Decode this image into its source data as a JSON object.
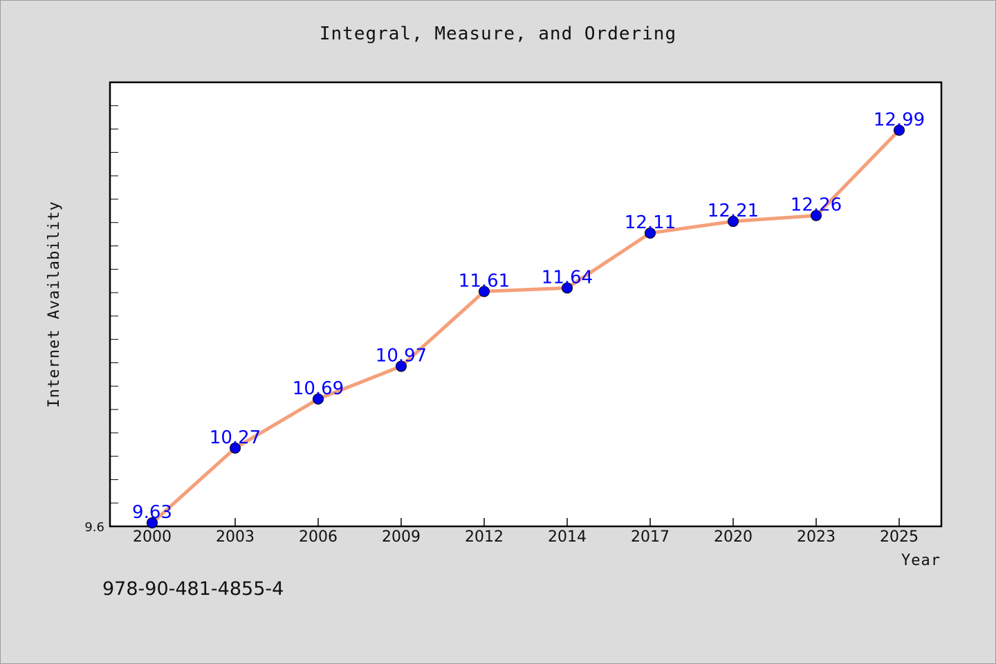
{
  "page": {
    "isbn": "978-90-481-4855-4"
  },
  "chart_data": {
    "type": "line",
    "title": "Integral, Measure, and Ordering",
    "xlabel": "Year",
    "ylabel": "Internet Availability",
    "categories": [
      "2000",
      "2003",
      "2006",
      "2009",
      "2012",
      "2014",
      "2017",
      "2020",
      "2023",
      "2025"
    ],
    "series": [
      {
        "values": [
          9.63,
          10.27,
          10.69,
          10.97,
          11.61,
          11.64,
          12.11,
          12.21,
          12.26,
          12.99
        ],
        "labels": [
          "9.63",
          "10.27",
          "10.69",
          "10.97",
          "11.61",
          "11.64",
          "12.11",
          "12.21",
          "12.26",
          "12.99"
        ]
      }
    ],
    "ylim": [
      9.6,
      13.4
    ],
    "y_ticks": [
      {
        "value": 9.6,
        "label": "9.6"
      }
    ],
    "minor_tick_step": 0.2,
    "grid": false,
    "colors": {
      "line": "#f4a07a",
      "marker": "#0000ee",
      "data_label": "#0000ff",
      "plot_background": "#ffffff",
      "page_background": "#dcdcdc"
    }
  }
}
